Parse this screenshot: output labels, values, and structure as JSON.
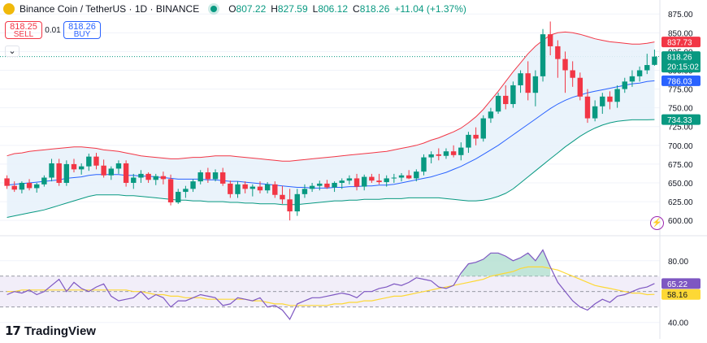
{
  "header": {
    "title": "Binance Coin / TetherUS · 1D · BINANCE",
    "open_label": "O",
    "open": "807.22",
    "high_label": "H",
    "high": "827.59",
    "low_label": "L",
    "low": "806.12",
    "close_label": "C",
    "close": "818.26",
    "change": "+11.04 (+1.37%)"
  },
  "trade": {
    "sell_price": "818.25",
    "sell_label": "SELL",
    "spread": "0.01",
    "buy_price": "818.26",
    "buy_label": "BUY"
  },
  "branding": {
    "logo_text": "TradingView"
  },
  "icons": {
    "collapse": "chevron-down-icon",
    "logo": "tradingview-logo-icon",
    "alert": "lightning-icon"
  },
  "colors": {
    "up": "#089981",
    "down": "#f23645",
    "bb_upper": "#f23645",
    "bb_basis": "#2962ff",
    "bb_lower": "#089981",
    "bb_fill": "#e8f2fb",
    "rsi": "#7e57c2",
    "rsi_ma": "#fdd835",
    "rsi_band": "#ede7f6",
    "rsi_ob_fill": "#b2dfcf"
  },
  "chart_data": [
    {
      "type": "candlestick",
      "title": "Binance Coin / TetherUS · 1D · BINANCE",
      "ylim": [
        585,
        885
      ],
      "yticks": [
        600,
        625,
        650,
        675,
        700,
        725,
        750,
        775,
        800,
        825,
        850,
        875
      ],
      "ytick_labels": [
        "600.00",
        "625.00",
        "650.00",
        "675.00",
        "700.00",
        "725.00",
        "750.00",
        "775.00",
        "800.00",
        "825.00",
        "850.00",
        "875.00"
      ],
      "price_tags": [
        {
          "label": "837.73",
          "value": 837.73,
          "role": "bb_upper"
        },
        {
          "label": "818.26",
          "value": 818.26,
          "role": "last",
          "sub": "20:15:02"
        },
        {
          "label": "786.03",
          "value": 786.03,
          "role": "bb_basis"
        },
        {
          "label": "734.33",
          "value": 734.33,
          "role": "bb_lower"
        }
      ],
      "last_price": 818.26,
      "candles": [
        [
          656,
          660,
          642,
          646
        ],
        [
          646,
          652,
          638,
          641
        ],
        [
          641,
          652,
          636,
          650
        ],
        [
          650,
          655,
          640,
          643
        ],
        [
          643,
          650,
          637,
          648
        ],
        [
          648,
          660,
          645,
          657
        ],
        [
          657,
          682,
          652,
          676
        ],
        [
          676,
          682,
          646,
          650
        ],
        [
          650,
          680,
          646,
          675
        ],
        [
          675,
          682,
          664,
          668
        ],
        [
          668,
          676,
          661,
          672
        ],
        [
          672,
          689,
          666,
          685
        ],
        [
          685,
          690,
          668,
          673
        ],
        [
          673,
          681,
          657,
          660
        ],
        [
          660,
          672,
          654,
          669
        ],
        [
          669,
          680,
          662,
          676
        ],
        [
          676,
          680,
          645,
          650
        ],
        [
          650,
          662,
          642,
          657
        ],
        [
          657,
          667,
          650,
          662
        ],
        [
          662,
          664,
          650,
          654
        ],
        [
          654,
          662,
          647,
          659
        ],
        [
          659,
          665,
          648,
          655
        ],
        [
          655,
          661,
          620,
          624
        ],
        [
          624,
          642,
          622,
          638
        ],
        [
          638,
          646,
          630,
          642
        ],
        [
          642,
          655,
          638,
          652
        ],
        [
          652,
          667,
          648,
          664
        ],
        [
          664,
          670,
          650,
          655
        ],
        [
          655,
          668,
          652,
          664
        ],
        [
          664,
          670,
          646,
          649
        ],
        [
          649,
          653,
          630,
          635
        ],
        [
          635,
          652,
          630,
          648
        ],
        [
          648,
          652,
          636,
          642
        ],
        [
          642,
          648,
          632,
          645
        ],
        [
          645,
          652,
          636,
          640
        ],
        [
          640,
          651,
          636,
          648
        ],
        [
          648,
          652,
          630,
          634
        ],
        [
          634,
          646,
          622,
          628
        ],
        [
          628,
          642,
          600,
          612
        ],
        [
          612,
          642,
          606,
          635
        ],
        [
          635,
          648,
          630,
          642
        ],
        [
          642,
          650,
          638,
          646
        ],
        [
          646,
          653,
          640,
          649
        ],
        [
          649,
          654,
          642,
          644
        ],
        [
          644,
          652,
          638,
          650
        ],
        [
          650,
          656,
          642,
          653
        ],
        [
          653,
          660,
          648,
          656
        ],
        [
          656,
          662,
          640,
          645
        ],
        [
          645,
          661,
          640,
          658
        ],
        [
          658,
          662,
          650,
          653
        ],
        [
          653,
          662,
          648,
          651
        ],
        [
          651,
          660,
          645,
          656
        ],
        [
          656,
          662,
          650,
          657
        ],
        [
          657,
          663,
          652,
          660
        ],
        [
          660,
          667,
          655,
          656
        ],
        [
          656,
          668,
          652,
          665
        ],
        [
          665,
          688,
          660,
          684
        ],
        [
          684,
          692,
          676,
          688
        ],
        [
          688,
          696,
          680,
          686
        ],
        [
          686,
          696,
          682,
          692
        ],
        [
          692,
          700,
          684,
          687
        ],
        [
          687,
          704,
          680,
          697
        ],
        [
          697,
          718,
          690,
          714
        ],
        [
          714,
          724,
          700,
          709
        ],
        [
          709,
          740,
          705,
          736
        ],
        [
          736,
          750,
          730,
          745
        ],
        [
          745,
          770,
          742,
          766
        ],
        [
          766,
          780,
          748,
          755
        ],
        [
          755,
          785,
          750,
          780
        ],
        [
          780,
          800,
          770,
          796
        ],
        [
          796,
          812,
          760,
          770
        ],
        [
          770,
          800,
          752,
          792
        ],
        [
          792,
          855,
          785,
          848
        ],
        [
          848,
          865,
          820,
          832
        ],
        [
          832,
          840,
          790,
          815
        ],
        [
          815,
          825,
          770,
          800
        ],
        [
          800,
          812,
          778,
          790
        ],
        [
          790,
          797,
          760,
          765
        ],
        [
          765,
          775,
          730,
          736
        ],
        [
          736,
          760,
          732,
          752
        ],
        [
          752,
          770,
          742,
          765
        ],
        [
          765,
          772,
          748,
          758
        ],
        [
          758,
          780,
          750,
          775
        ],
        [
          775,
          790,
          770,
          785
        ],
        [
          785,
          800,
          778,
          792
        ],
        [
          792,
          805,
          785,
          800
        ],
        [
          800,
          822,
          795,
          807
        ],
        [
          807.22,
          827.59,
          806.12,
          818.26
        ]
      ],
      "bb_upper": [
        686,
        689,
        690,
        692,
        693,
        694,
        695,
        696,
        697,
        698,
        698,
        697,
        696,
        694,
        693,
        692,
        690,
        688,
        686,
        685,
        684,
        683,
        682,
        682,
        683,
        684,
        684,
        685,
        686,
        686,
        686,
        685,
        684,
        683,
        682,
        681,
        680,
        679,
        679,
        680,
        681,
        682,
        683,
        684,
        685,
        686,
        687,
        688,
        689,
        690,
        691,
        692,
        694,
        696,
        698,
        700,
        703,
        707,
        710,
        714,
        718,
        723,
        730,
        738,
        748,
        760,
        772,
        785,
        798,
        810,
        822,
        832,
        840,
        847,
        850,
        851,
        850,
        848,
        845,
        842,
        840,
        838,
        837,
        836,
        835,
        835,
        836,
        837.73
      ],
      "bb_basis": [
        647,
        648,
        649,
        650,
        651,
        652,
        653,
        654,
        656,
        657,
        658,
        660,
        661,
        661,
        661,
        661,
        660,
        660,
        659,
        659,
        658,
        657,
        656,
        655,
        655,
        655,
        655,
        654,
        654,
        653,
        652,
        652,
        651,
        650,
        649,
        648,
        647,
        646,
        645,
        644,
        644,
        643,
        643,
        643,
        644,
        644,
        645,
        645,
        646,
        646,
        647,
        647,
        648,
        650,
        652,
        654,
        656,
        658,
        661,
        664,
        668,
        672,
        677,
        682,
        688,
        694,
        700,
        707,
        714,
        721,
        728,
        735,
        742,
        749,
        755,
        760,
        764,
        767,
        770,
        772,
        774,
        776,
        778,
        780,
        782,
        783,
        785,
        786.03
      ],
      "bb_lower": [
        604,
        606,
        608,
        610,
        612,
        614,
        617,
        620,
        623,
        626,
        629,
        632,
        634,
        634,
        634,
        634,
        633,
        633,
        632,
        631,
        630,
        629,
        628,
        627,
        627,
        626,
        626,
        625,
        625,
        625,
        624,
        624,
        623,
        623,
        622,
        622,
        622,
        621,
        621,
        621,
        622,
        623,
        624,
        625,
        626,
        626,
        627,
        627,
        628,
        628,
        628,
        629,
        629,
        629,
        630,
        630,
        630,
        630,
        630,
        629,
        628,
        627,
        626,
        626,
        627,
        629,
        632,
        636,
        642,
        650,
        658,
        666,
        674,
        682,
        690,
        698,
        705,
        712,
        718,
        723,
        727,
        730,
        732,
        733,
        734,
        734,
        734,
        734.33
      ]
    },
    {
      "type": "line",
      "title": "RSI",
      "ylim": [
        33,
        92
      ],
      "yticks": [
        40,
        60,
        80
      ],
      "ytick_labels": [
        "40.00",
        "",
        "80.00"
      ],
      "band": [
        50,
        70
      ],
      "overbought": 70,
      "price_tags": [
        {
          "label": "65.22",
          "value": 65.22,
          "role": "rsi"
        },
        {
          "label": "58.16",
          "value": 58.16,
          "role": "rsi_ma"
        }
      ],
      "series": [
        {
          "role": "rsi",
          "values": [
            58,
            60,
            59,
            61,
            58,
            60,
            64,
            68,
            60,
            66,
            62,
            60,
            63,
            65,
            57,
            54,
            55,
            56,
            60,
            55,
            58,
            56,
            50,
            54,
            54,
            56,
            58,
            57,
            56,
            51,
            52,
            56,
            55,
            54,
            56,
            50,
            51,
            48,
            42,
            52,
            54,
            56,
            56,
            57,
            58,
            59,
            58,
            56,
            60,
            60,
            62,
            63,
            65,
            64,
            66,
            69,
            68,
            67,
            63,
            62,
            64,
            72,
            78,
            79,
            81,
            85,
            85,
            83,
            80,
            82,
            85,
            80,
            87,
            76,
            66,
            60,
            54,
            50,
            48,
            52,
            55,
            53,
            57,
            58,
            60,
            62,
            63,
            65.22
          ]
        },
        {
          "role": "rsi_ma",
          "values": [
            60,
            60,
            61,
            61,
            61,
            61,
            61,
            61,
            61,
            61,
            61,
            61,
            61,
            61,
            61,
            61,
            61,
            60,
            60,
            59,
            58,
            58,
            57,
            57,
            56,
            56,
            56,
            55,
            55,
            55,
            55,
            55,
            55,
            54,
            54,
            53,
            52,
            52,
            51,
            51,
            51,
            51,
            51,
            51,
            52,
            52,
            53,
            53,
            54,
            54,
            55,
            56,
            57,
            57,
            58,
            59,
            60,
            61,
            62,
            63,
            64,
            65,
            66,
            67,
            68,
            70,
            71,
            72,
            73,
            75,
            76,
            76,
            76,
            75,
            74,
            72,
            70,
            68,
            66,
            64,
            63,
            62,
            61,
            60,
            59,
            59,
            58,
            58.16
          ]
        }
      ]
    }
  ]
}
